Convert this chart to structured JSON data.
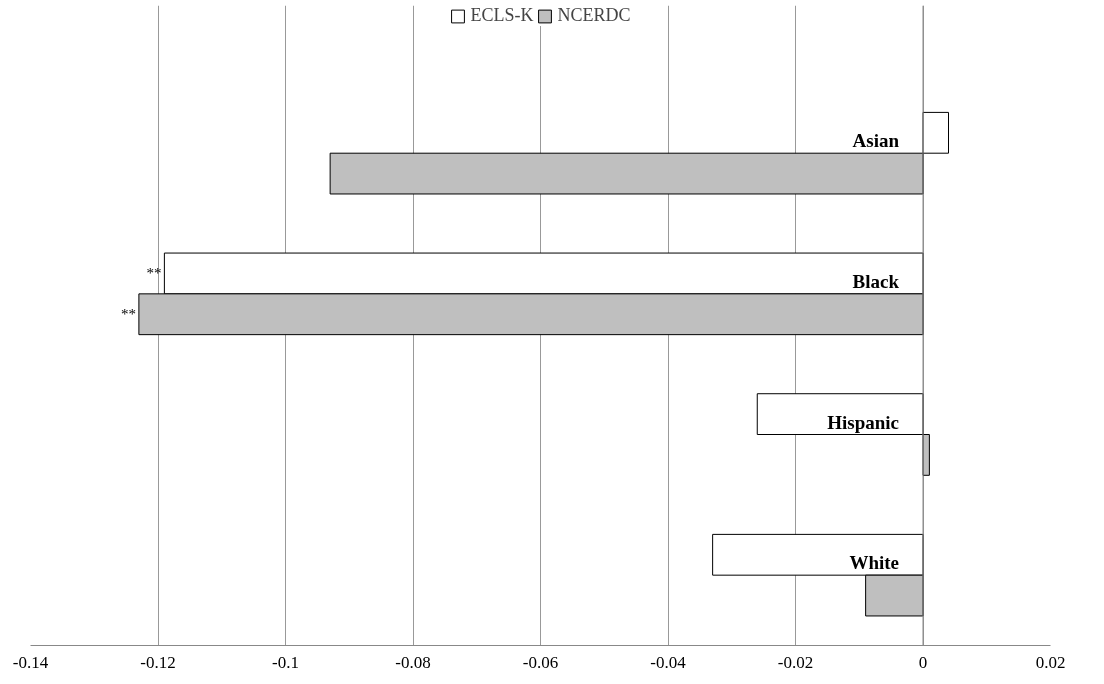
{
  "chart_data": {
    "type": "bar",
    "orientation": "horizontal",
    "categories": [
      "Asian",
      "Black",
      "Hispanic",
      "White"
    ],
    "series": [
      {
        "name": "ECLS-K",
        "color": "#ffffff",
        "values": [
          0.004,
          -0.119,
          -0.026,
          -0.033
        ]
      },
      {
        "name": "NCERDC",
        "color": "#bfbfbf",
        "values": [
          -0.093,
          -0.123,
          0.001,
          -0.009
        ]
      }
    ],
    "xlim": [
      -0.14,
      0.02
    ],
    "xticks": [
      -0.14,
      -0.12,
      -0.1,
      -0.08,
      -0.06,
      -0.04,
      -0.02,
      0,
      0.02
    ],
    "grid": "x",
    "legend": "top",
    "annotations": [
      "**",
      "**"
    ]
  }
}
